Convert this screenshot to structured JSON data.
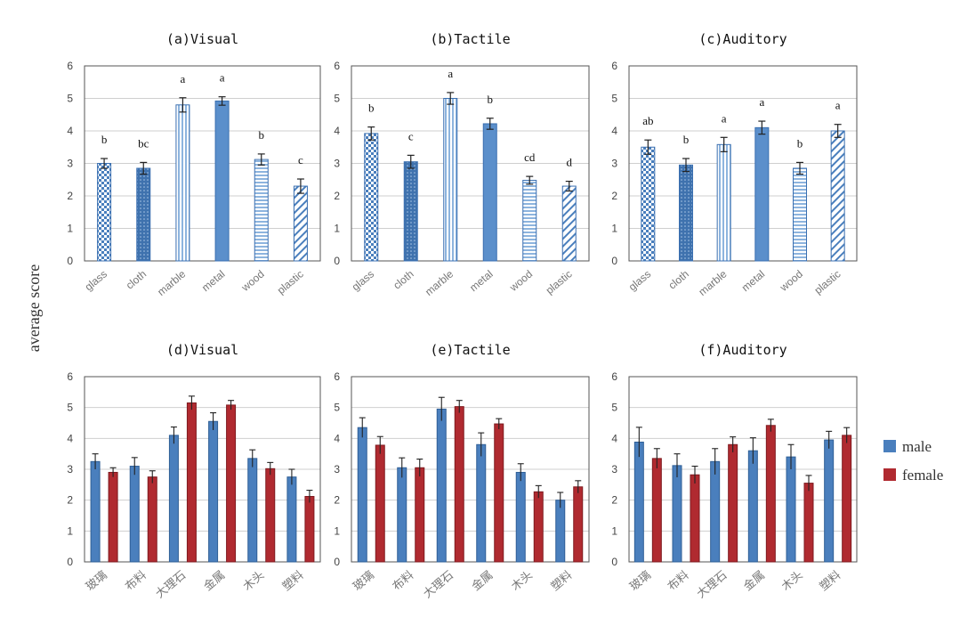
{
  "figure": {
    "ylabel": "average score",
    "legend": {
      "items": [
        "male",
        "female"
      ],
      "colors": [
        "#4a7fbd",
        "#b02a30"
      ],
      "placement": "right"
    }
  },
  "chart_data": [
    {
      "id": "a",
      "type": "bar",
      "title": "(a)Visual",
      "categories": [
        "glass",
        "cloth",
        "marble",
        "metal",
        "wood",
        "plastic"
      ],
      "values": [
        3.0,
        2.85,
        4.8,
        4.92,
        3.12,
        2.3
      ],
      "errors": [
        0.15,
        0.18,
        0.22,
        0.13,
        0.17,
        0.22
      ],
      "letters": [
        "b",
        "bc",
        "a",
        "a",
        "b",
        "c"
      ],
      "patterns": [
        "check",
        "dots",
        "vlines",
        "solid",
        "hlines",
        "diag"
      ],
      "ylim": [
        0,
        6
      ],
      "yticks": [
        0,
        1,
        2,
        3,
        4,
        5,
        6
      ],
      "grid": true
    },
    {
      "id": "b",
      "type": "bar",
      "title": "(b)Tactile",
      "categories": [
        "glass",
        "cloth",
        "marble",
        "metal",
        "wood",
        "plastic"
      ],
      "values": [
        3.92,
        3.05,
        5.0,
        4.22,
        2.48,
        2.3
      ],
      "errors": [
        0.2,
        0.2,
        0.18,
        0.17,
        0.12,
        0.15
      ],
      "letters": [
        "b",
        "c",
        "a",
        "b",
        "cd",
        "d"
      ],
      "patterns": [
        "check",
        "dots",
        "vlines",
        "solid",
        "hlines",
        "diag"
      ],
      "ylim": [
        0,
        6
      ],
      "yticks": [
        0,
        1,
        2,
        3,
        4,
        5,
        6
      ],
      "grid": true
    },
    {
      "id": "c",
      "type": "bar",
      "title": "(c)Auditory",
      "categories": [
        "glass",
        "cloth",
        "marble",
        "metal",
        "wood",
        "plastic"
      ],
      "values": [
        3.5,
        2.95,
        3.58,
        4.1,
        2.85,
        4.0
      ],
      "errors": [
        0.22,
        0.2,
        0.22,
        0.2,
        0.18,
        0.2
      ],
      "letters": [
        "ab",
        "b",
        "a",
        "a",
        "b",
        "a"
      ],
      "patterns": [
        "check",
        "dots",
        "vlines",
        "solid",
        "hlines",
        "diag"
      ],
      "ylim": [
        0,
        6
      ],
      "yticks": [
        0,
        1,
        2,
        3,
        4,
        5,
        6
      ],
      "grid": true
    },
    {
      "id": "d",
      "type": "bar",
      "title": "(d)Visual",
      "categories": [
        "玻璃",
        "布料",
        "大理石",
        "金属",
        "木头",
        "塑料"
      ],
      "series": [
        {
          "name": "male",
          "values": [
            3.25,
            3.1,
            4.1,
            4.55,
            3.35,
            2.75
          ],
          "errors": [
            0.25,
            0.28,
            0.27,
            0.28,
            0.28,
            0.25
          ]
        },
        {
          "name": "female",
          "values": [
            2.9,
            2.75,
            5.15,
            5.08,
            3.02,
            2.12
          ],
          "errors": [
            0.15,
            0.2,
            0.22,
            0.15,
            0.2,
            0.2
          ]
        }
      ],
      "ylim": [
        0,
        6
      ],
      "yticks": [
        0,
        1,
        2,
        3,
        4,
        5,
        6
      ],
      "grid": true
    },
    {
      "id": "e",
      "type": "bar",
      "title": "(e)Tactile",
      "categories": [
        "玻璃",
        "布料",
        "大理石",
        "金属",
        "木头",
        "塑料"
      ],
      "series": [
        {
          "name": "male",
          "values": [
            4.35,
            3.05,
            4.95,
            3.8,
            2.9,
            2.0
          ],
          "errors": [
            0.32,
            0.32,
            0.38,
            0.38,
            0.28,
            0.25
          ]
        },
        {
          "name": "female",
          "values": [
            3.78,
            3.05,
            5.03,
            4.47,
            2.27,
            2.43
          ],
          "errors": [
            0.28,
            0.28,
            0.2,
            0.17,
            0.2,
            0.2
          ]
        }
      ],
      "ylim": [
        0,
        6
      ],
      "yticks": [
        0,
        1,
        2,
        3,
        4,
        5,
        6
      ],
      "grid": true
    },
    {
      "id": "f",
      "type": "bar",
      "title": "(f)Auditory",
      "categories": [
        "玻璃",
        "布料",
        "大理石",
        "金属",
        "木头",
        "塑料"
      ],
      "series": [
        {
          "name": "male",
          "values": [
            3.88,
            3.12,
            3.25,
            3.6,
            3.4,
            3.95
          ],
          "errors": [
            0.48,
            0.38,
            0.42,
            0.42,
            0.4,
            0.28
          ]
        },
        {
          "name": "female",
          "values": [
            3.35,
            2.82,
            3.8,
            4.42,
            2.55,
            4.1
          ],
          "errors": [
            0.32,
            0.28,
            0.25,
            0.2,
            0.25,
            0.25
          ]
        }
      ],
      "ylim": [
        0,
        6
      ],
      "yticks": [
        0,
        1,
        2,
        3,
        4,
        5,
        6
      ],
      "grid": true
    }
  ]
}
